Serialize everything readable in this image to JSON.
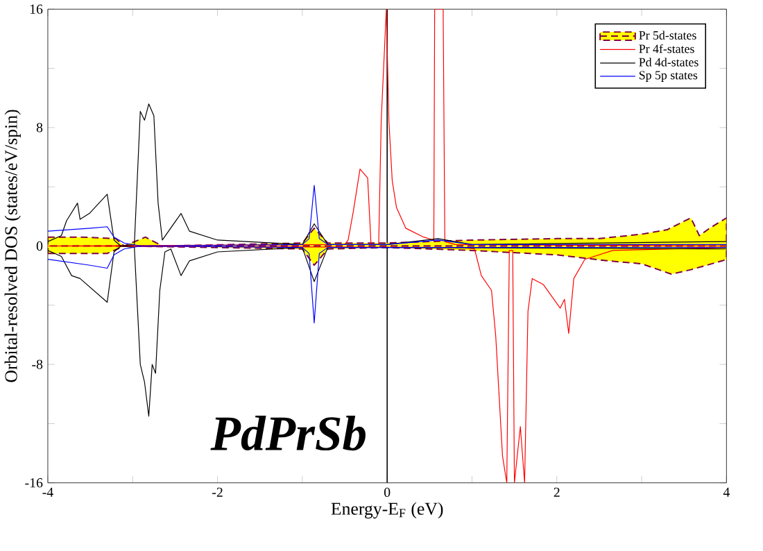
{
  "chart_data": {
    "type": "line",
    "xlabel": "Energy-E$_{F}$ (eV)",
    "ylabel": "Orbital-resolved DOS (states/eV/spin)",
    "xlim": [
      -4,
      4
    ],
    "ylim": [
      -16,
      16
    ],
    "xticks": [
      -4,
      {
        "value": -3,
        "label": null
      },
      -2,
      {
        "value": -1,
        "label": null
      },
      0,
      {
        "value": 1,
        "label": null
      },
      2,
      {
        "value": 3,
        "label": null
      },
      4
    ],
    "yticks": [
      -16,
      {
        "value": -12,
        "label": null
      },
      -8,
      {
        "value": -4,
        "label": null
      },
      0,
      {
        "value": 4,
        "label": null
      },
      8,
      {
        "value": 12,
        "label": null
      },
      16
    ],
    "legend": "top right",
    "ref_lines": [
      {
        "axis": "x",
        "value": 0,
        "color": "#000000"
      }
    ],
    "annotations": [
      "PdPrSb"
    ],
    "series": [
      {
        "name": "Pr 5d-states",
        "type": "area",
        "color": "#ffff00",
        "line_style": "dashed",
        "x": [
          -4,
          -3.6,
          -3.2,
          -3.1,
          -2.85,
          -2.75,
          -2.65,
          -1.0,
          -0.86,
          -0.7,
          0,
          1,
          2,
          2.5,
          3.0,
          3.3,
          3.58,
          3.68,
          3.8,
          4
        ],
        "values": [
          0.6,
          0.6,
          0.5,
          0,
          0.6,
          0.3,
          0,
          0.2,
          1.2,
          0.2,
          0.2,
          0.4,
          0.5,
          0.5,
          0.8,
          1.1,
          1.9,
          0.7,
          1.2,
          1.9
        ]
      },
      {
        "type": "area",
        "color": "#ffff00",
        "line_style": "dashed",
        "x": [
          -4,
          -3.3,
          -3.1,
          -1.0,
          -0.86,
          -0.7,
          0,
          1,
          2,
          2.6,
          3.0,
          3.35,
          3.58,
          3.95,
          4
        ],
        "values": [
          -0.5,
          -0.5,
          0,
          -0.2,
          -1.3,
          -0.2,
          -0.1,
          -0.3,
          -0.6,
          -1.0,
          -1.2,
          -1.9,
          -1.6,
          -1.0,
          -0.9
        ]
      },
      {
        "name": "Pr 4f-states",
        "color": "#ff0000",
        "x": [
          -4,
          -0.5,
          -0.46,
          -0.4,
          -0.32,
          -0.23,
          -0.19,
          -0.1,
          -0.07,
          -0.01,
          0.02,
          0.06,
          0.11,
          0.22,
          0.43,
          0.55,
          0.56,
          0.66,
          0.68,
          0.8,
          4
        ],
        "values": [
          0,
          0.1,
          0.4,
          2.3,
          5.2,
          4.6,
          0.1,
          0.1,
          8.5,
          16,
          8.5,
          4.4,
          2.6,
          1.2,
          0.6,
          0.4,
          16,
          16,
          0.3,
          0.1,
          0
        ]
      },
      {
        "color": "#ff0000",
        "x": [
          -4,
          0.9,
          1.03,
          1.11,
          1.23,
          1.28,
          1.36,
          1.41,
          1.44,
          1.48,
          1.5,
          1.57,
          1.62,
          1.66,
          1.71,
          1.84,
          2.04,
          2.09,
          2.14,
          2.2,
          2.33,
          2.66,
          4
        ],
        "values": [
          0,
          -0.1,
          -0.2,
          -2.0,
          -3.0,
          -6.1,
          -14.2,
          -16,
          -0.3,
          -0.3,
          -16,
          -12.2,
          -16,
          -4.4,
          -2.2,
          -2.6,
          -4.2,
          -3.6,
          -5.9,
          -2.2,
          -0.9,
          -0.3,
          -0.1
        ]
      },
      {
        "name": "Pd 4d-states",
        "color": "#000000",
        "x": [
          -4,
          -3.84,
          -3.78,
          -3.65,
          -3.62,
          -3.51,
          -3.3,
          -3.22,
          -3.14,
          -2.98,
          -2.91,
          -2.86,
          -2.81,
          -2.75,
          -2.7,
          -2.65,
          -2.43,
          -2.33,
          -2.0,
          -1.0,
          -0.86,
          -0.7,
          0,
          0.6,
          1,
          4
        ],
        "values": [
          0.3,
          0.7,
          1.7,
          2.9,
          1.8,
          2.2,
          3.5,
          0.4,
          0,
          0.1,
          9.1,
          8.5,
          9.6,
          8.8,
          2.9,
          0.4,
          2.2,
          1.0,
          0.4,
          0.1,
          1.5,
          0.1,
          0.1,
          0.5,
          0.1,
          0.3
        ]
      },
      {
        "color": "#000000",
        "x": [
          -4,
          -3.84,
          -3.72,
          -3.62,
          -3.3,
          -3.22,
          -3.14,
          -2.98,
          -2.91,
          -2.86,
          -2.81,
          -2.77,
          -2.73,
          -2.68,
          -2.62,
          -2.55,
          -2.43,
          -2.33,
          -2.0,
          -1.0,
          -0.86,
          -0.7,
          0,
          4
        ],
        "values": [
          -0.3,
          -0.7,
          -2.0,
          -2.2,
          -3.8,
          -0.4,
          0,
          -0.1,
          -8.0,
          -9.2,
          -11.5,
          -8.0,
          -8.6,
          -3.0,
          -0.4,
          -0.2,
          -2.0,
          -1.0,
          -0.4,
          -0.1,
          -2.4,
          -0.1,
          -0.1,
          -0.2
        ]
      },
      {
        "name": "Sp 5p states",
        "color": "#0000ff",
        "x": [
          -4,
          -3.5,
          -3.3,
          -3.22,
          -3.1,
          -2.9,
          -1.0,
          -0.92,
          -0.86,
          -0.8,
          -0.7,
          0,
          0.6,
          1,
          4
        ],
        "values": [
          1.0,
          1.2,
          1.3,
          0.6,
          0.2,
          0,
          0.1,
          0.5,
          4.1,
          0.5,
          0.1,
          0.1,
          0.4,
          0.1,
          0.1
        ]
      },
      {
        "color": "#0000ff",
        "x": [
          -4,
          -3.5,
          -3.3,
          -3.22,
          -3.1,
          -2.9,
          -1.0,
          -0.92,
          -0.86,
          -0.8,
          -0.7,
          0,
          4
        ],
        "values": [
          -0.9,
          -1.3,
          -1.5,
          -0.6,
          -0.2,
          0,
          -0.1,
          -0.5,
          -5.2,
          -0.5,
          -0.1,
          -0.1,
          -0.1
        ]
      }
    ]
  }
}
